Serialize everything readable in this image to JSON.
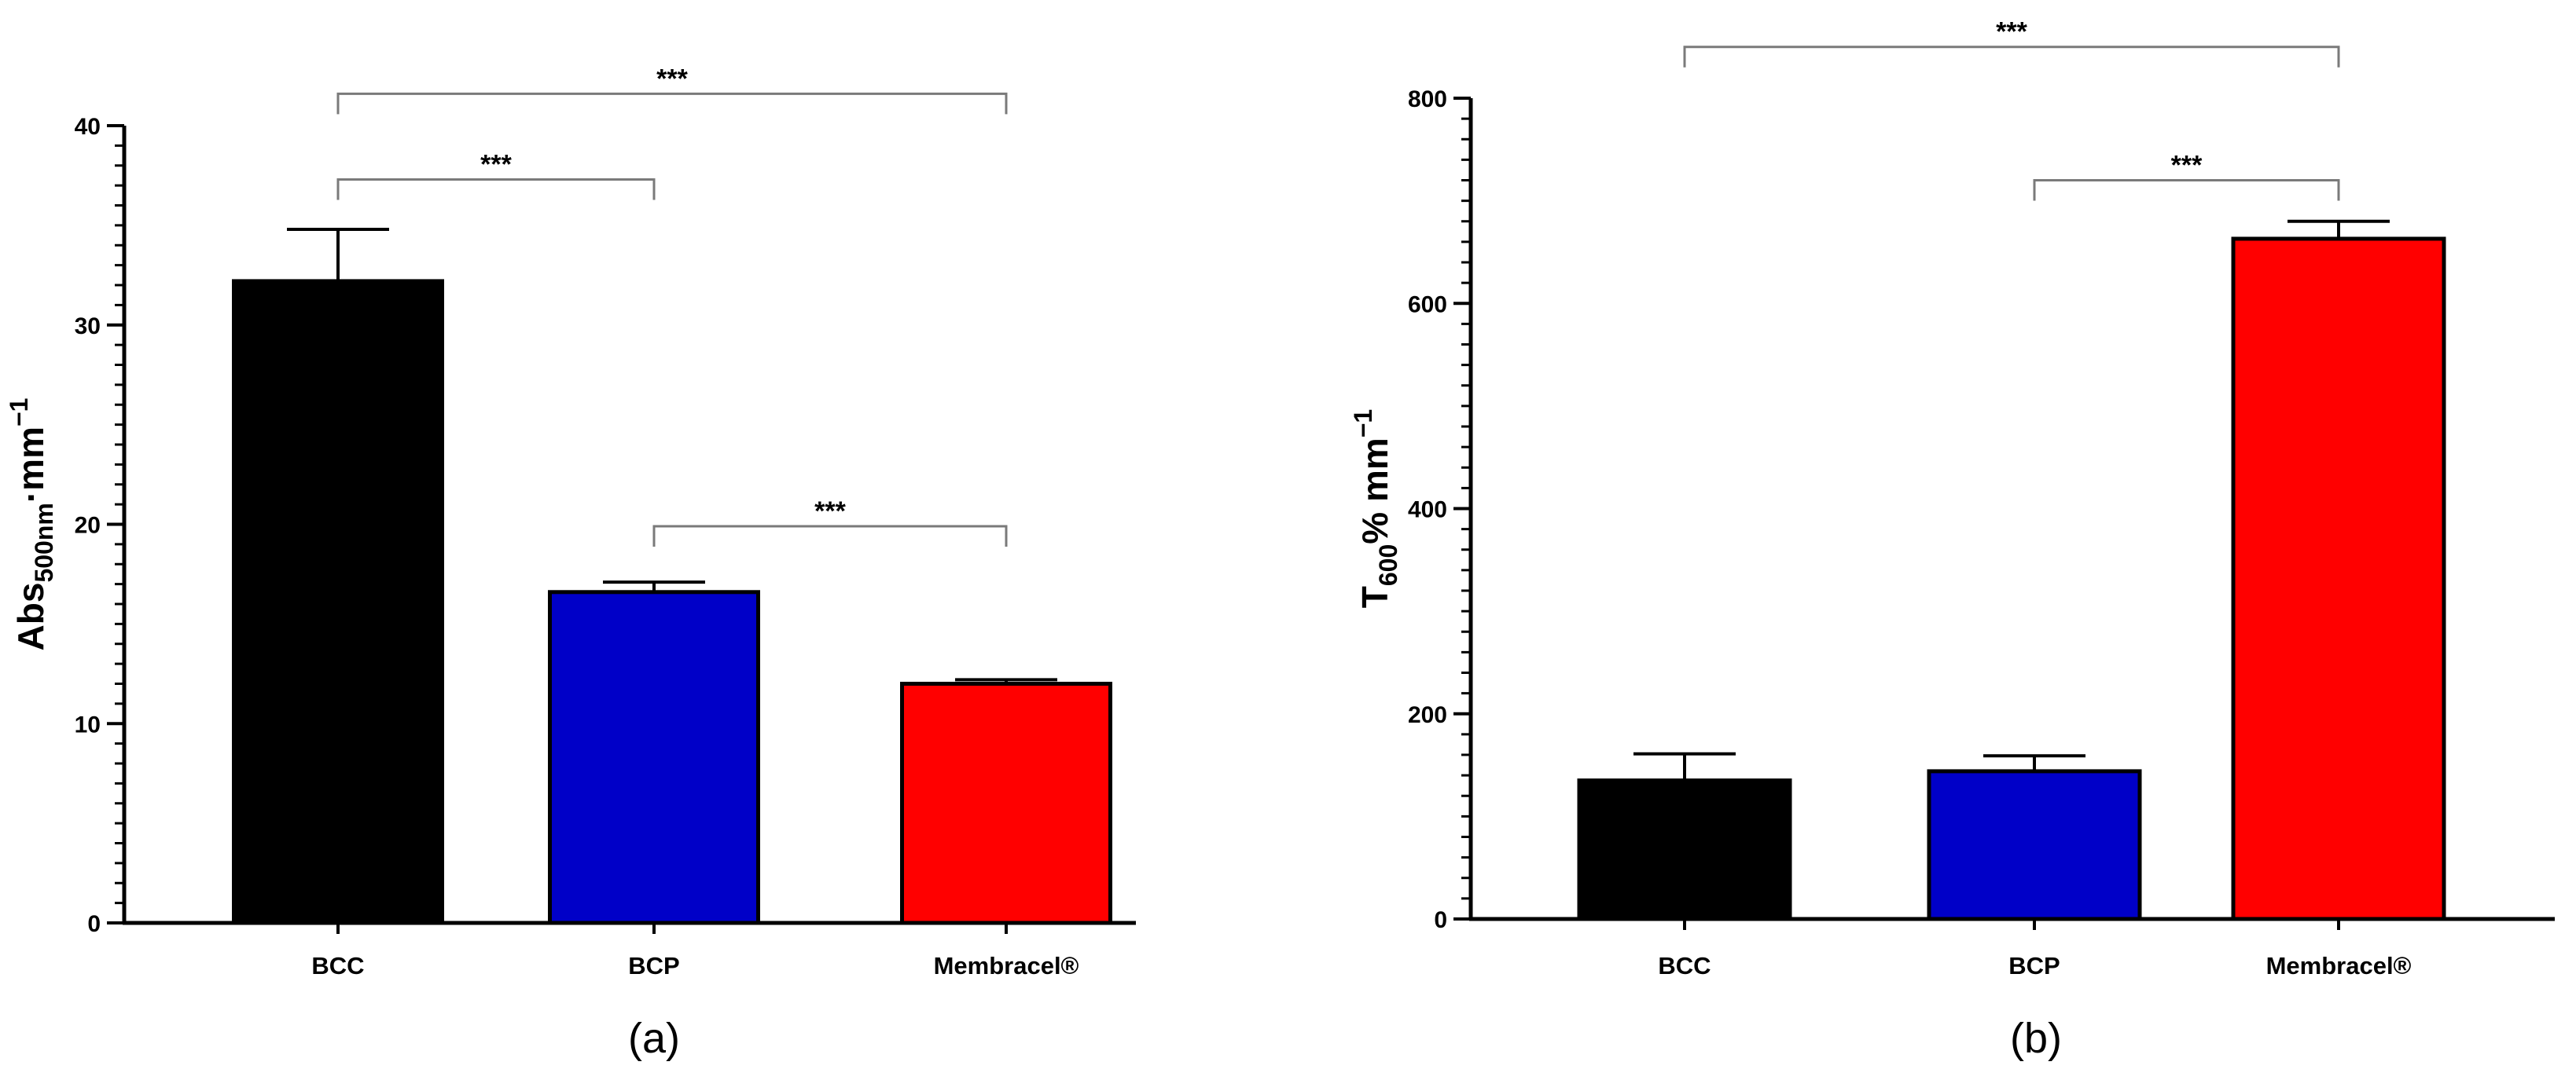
{
  "chart_data": [
    {
      "type": "bar",
      "panel_label": "(a)",
      "categories": [
        "BCC",
        "BCP",
        "Membracel®"
      ],
      "values": [
        32.2,
        16.6,
        12.0
      ],
      "errors": [
        2.6,
        0.5,
        0.2
      ],
      "colors": [
        "#000000",
        "#0000c8",
        "#ff0000"
      ],
      "ylabel": {
        "main": "Abs",
        "sub": "500nm",
        "rest": "·mm",
        "sup": "−1"
      },
      "ylim": [
        0,
        40
      ],
      "yticks": [
        0,
        10,
        20,
        30,
        40
      ],
      "y_minor_step": 1,
      "significance": [
        {
          "from": 0,
          "to": 1,
          "label": "***",
          "y": 37.3
        },
        {
          "from": 1,
          "to": 2,
          "label": "***",
          "y": 19.9
        },
        {
          "from": 0,
          "to": 2,
          "label": "***",
          "y": 41.6
        }
      ]
    },
    {
      "type": "bar",
      "panel_label": "(b)",
      "categories": [
        "BCC",
        "BCP",
        "Membracel®"
      ],
      "values": [
        135,
        144,
        663
      ],
      "errors": [
        26,
        15,
        17
      ],
      "colors": [
        "#000000",
        "#0000c8",
        "#ff0000"
      ],
      "ylabel": {
        "main": "T",
        "sub": "600",
        "rest": "% mm",
        "sup": "−1"
      },
      "ylim": [
        0,
        800
      ],
      "yticks": [
        0,
        200,
        400,
        600,
        800
      ],
      "y_minor_step": 20,
      "significance": [
        {
          "from": 1,
          "to": 2,
          "label": "***",
          "y": 720
        },
        {
          "from": 0,
          "to": 2,
          "label": "***",
          "y": 850
        }
      ]
    }
  ]
}
